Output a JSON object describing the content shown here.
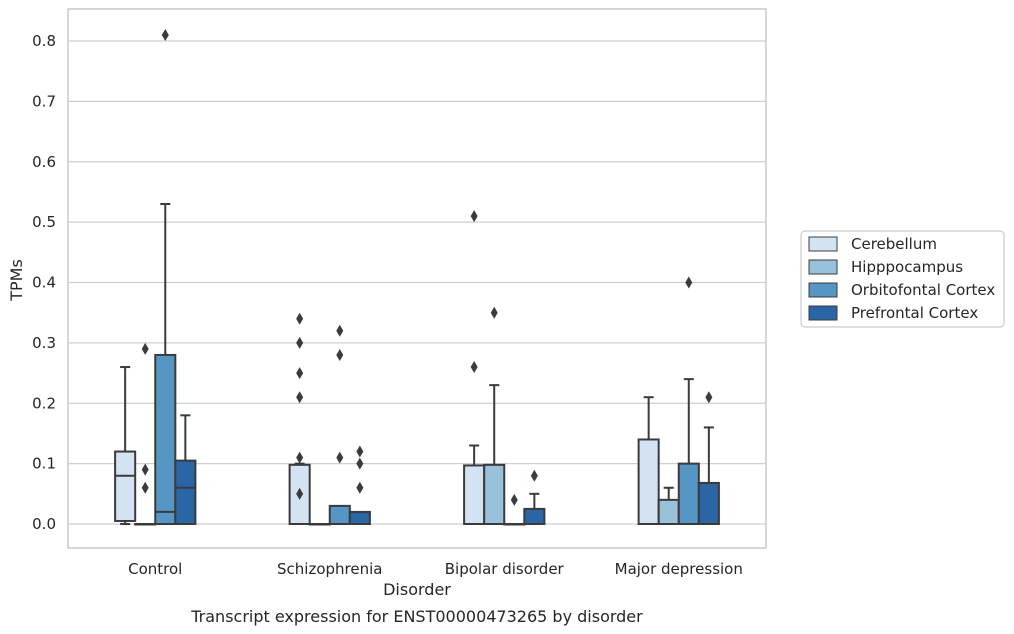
{
  "chart_data": {
    "type": "boxplot",
    "caption": "Transcript expression for ENST00000473265 by disorder",
    "xlabel": "Disorder",
    "ylabel": "TPMs",
    "ylim": [
      -0.04,
      0.85
    ],
    "yticks": [
      "0.0",
      "0.1",
      "0.2",
      "0.3",
      "0.4",
      "0.5",
      "0.6",
      "0.7",
      "0.8"
    ],
    "grid": true,
    "legend_position": "right",
    "categories": [
      "Control",
      "Schizophrenia",
      "Bipolar disorder",
      "Major depression"
    ],
    "series": [
      {
        "name": "Cerebellum",
        "color": "#d4e3f3",
        "boxes": [
          {
            "q1": 0.005,
            "median": 0.08,
            "q3": 0.12,
            "whisker_low": 0.0,
            "whisker_high": 0.26,
            "outliers": []
          },
          {
            "q1": 0.0,
            "median": 0.0,
            "q3": 0.098,
            "whisker_low": 0.0,
            "whisker_high": 0.1,
            "outliers": [
              0.34,
              0.3,
              0.25,
              0.21,
              0.11,
              0.05
            ]
          },
          {
            "q1": 0.0,
            "median": 0.0,
            "q3": 0.097,
            "whisker_low": 0.0,
            "whisker_high": 0.13,
            "outliers": [
              0.51,
              0.26
            ]
          },
          {
            "q1": 0.0,
            "median": 0.0,
            "q3": 0.14,
            "whisker_low": 0.0,
            "whisker_high": 0.21,
            "outliers": []
          }
        ]
      },
      {
        "name": "Hipppocampus",
        "color": "#9ac1da",
        "boxes": [
          {
            "q1": 0.0,
            "median": 0.0,
            "q3": 0.0,
            "whisker_low": 0.0,
            "whisker_high": 0.0,
            "outliers": [
              0.29,
              0.09,
              0.06
            ]
          },
          {
            "q1": 0.0,
            "median": 0.0,
            "q3": 0.0,
            "whisker_low": 0.0,
            "whisker_high": 0.0,
            "outliers": []
          },
          {
            "q1": 0.0,
            "median": 0.0,
            "q3": 0.098,
            "whisker_low": 0.0,
            "whisker_high": 0.23,
            "outliers": [
              0.35
            ]
          },
          {
            "q1": 0.0,
            "median": 0.0,
            "q3": 0.04,
            "whisker_low": 0.0,
            "whisker_high": 0.06,
            "outliers": []
          }
        ]
      },
      {
        "name": "Orbitofontal Cortex",
        "color": "#5696c5",
        "boxes": [
          {
            "q1": 0.0,
            "median": 0.02,
            "q3": 0.28,
            "whisker_low": 0.0,
            "whisker_high": 0.53,
            "outliers": [
              0.81
            ]
          },
          {
            "q1": 0.0,
            "median": 0.0,
            "q3": 0.03,
            "whisker_low": 0.0,
            "whisker_high": 0.03,
            "outliers": [
              0.32,
              0.28,
              0.11
            ]
          },
          {
            "q1": 0.0,
            "median": 0.0,
            "q3": 0.0,
            "whisker_low": 0.0,
            "whisker_high": 0.0,
            "outliers": [
              0.04
            ]
          },
          {
            "q1": 0.0,
            "median": 0.0,
            "q3": 0.1,
            "whisker_low": 0.0,
            "whisker_high": 0.24,
            "outliers": [
              0.4
            ]
          }
        ]
      },
      {
        "name": "Prefrontal Cortex",
        "color": "#2a65a6",
        "boxes": [
          {
            "q1": 0.0,
            "median": 0.06,
            "q3": 0.105,
            "whisker_low": 0.0,
            "whisker_high": 0.18,
            "outliers": []
          },
          {
            "q1": 0.0,
            "median": 0.0,
            "q3": 0.02,
            "whisker_low": 0.0,
            "whisker_high": 0.02,
            "outliers": [
              0.12,
              0.1,
              0.06
            ]
          },
          {
            "q1": 0.0,
            "median": 0.0,
            "q3": 0.025,
            "whisker_low": 0.0,
            "whisker_high": 0.05,
            "outliers": [
              0.08
            ]
          },
          {
            "q1": 0.0,
            "median": 0.0,
            "q3": 0.068,
            "whisker_low": 0.0,
            "whisker_high": 0.16,
            "outliers": [
              0.21
            ]
          }
        ]
      }
    ]
  }
}
